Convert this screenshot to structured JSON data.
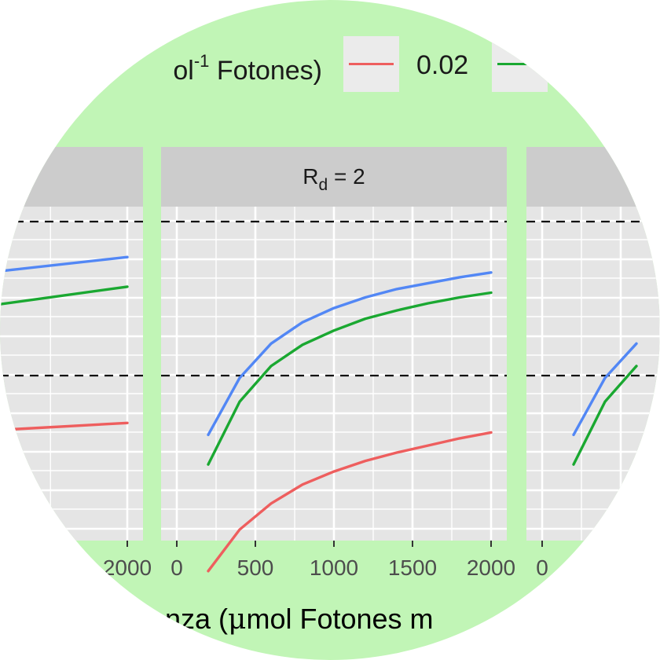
{
  "legend": {
    "title_fragment": "ol",
    "title_superscript": "-1",
    "title_main": " Fotones)",
    "entries": [
      {
        "label": "0.02",
        "color": "#ee5e5e"
      },
      {
        "label": "",
        "color": "#1aa831"
      }
    ]
  },
  "xaxis_title": {
    "prefix": "nza (",
    "mu": "μ",
    "rest": "mol Fotones  m"
  },
  "colors": {
    "background": "#c1f5b6",
    "panel": "#e5e5e5",
    "strip": "#cccccc",
    "grid": "#ffffff",
    "series_red": "#ee5e5e",
    "series_green": "#1aa831",
    "series_blue": "#5287f5"
  },
  "chart_data": [
    {
      "type": "line",
      "panel": "left",
      "strip_label": "",
      "xlim": [
        0,
        2000
      ],
      "x_tick_labels": [
        "2000"
      ],
      "series": [
        {
          "color": "red",
          "x": [
            1300,
            2000
          ],
          "y": [
            0.42,
            0.43
          ]
        },
        {
          "color": "green",
          "x": [
            1300,
            2000
          ],
          "y": [
            0.52,
            0.545
          ]
        },
        {
          "color": "blue",
          "x": [
            1300,
            2000
          ],
          "y": [
            0.55,
            0.57
          ]
        }
      ],
      "hlines": [
        0.6,
        0.47
      ]
    },
    {
      "type": "line",
      "panel": "center",
      "strip_label": {
        "main": "R",
        "sub": "d",
        "suffix": " = 2"
      },
      "xlim": [
        0,
        2000
      ],
      "x_ticks": [
        0,
        500,
        1000,
        1500,
        2000
      ],
      "x_tick_labels": [
        "0",
        "500",
        "1000",
        "1500",
        "2000"
      ],
      "series": [
        {
          "color": "red",
          "x": [
            200,
            400,
            600,
            800,
            1000,
            1200,
            1400,
            1600,
            1800,
            2000
          ],
          "y": [
            0.305,
            0.34,
            0.362,
            0.378,
            0.389,
            0.398,
            0.405,
            0.411,
            0.417,
            0.422
          ]
        },
        {
          "color": "green",
          "x": [
            200,
            400,
            600,
            800,
            1000,
            1200,
            1400,
            1600,
            1800,
            2000
          ],
          "y": [
            0.395,
            0.448,
            0.478,
            0.496,
            0.508,
            0.518,
            0.525,
            0.531,
            0.536,
            0.54
          ]
        },
        {
          "color": "blue",
          "x": [
            200,
            400,
            600,
            800,
            1000,
            1200,
            1400,
            1600,
            1800,
            2000
          ],
          "y": [
            0.42,
            0.468,
            0.497,
            0.515,
            0.527,
            0.536,
            0.543,
            0.548,
            0.553,
            0.557
          ]
        }
      ],
      "hlines": [
        0.6,
        0.47
      ]
    },
    {
      "type": "line",
      "panel": "right",
      "strip_label": "",
      "xlim": [
        0,
        2000
      ],
      "x_tick_labels": [
        "0"
      ],
      "series": [
        {
          "color": "red",
          "x": [
            200,
            400
          ],
          "y": [
            0.305,
            0.34
          ]
        },
        {
          "color": "green",
          "x": [
            200,
            400,
            600
          ],
          "y": [
            0.395,
            0.448,
            0.478
          ]
        },
        {
          "color": "blue",
          "x": [
            200,
            400,
            600
          ],
          "y": [
            0.42,
            0.468,
            0.497
          ]
        }
      ],
      "hlines": [
        0.6,
        0.47
      ]
    }
  ]
}
